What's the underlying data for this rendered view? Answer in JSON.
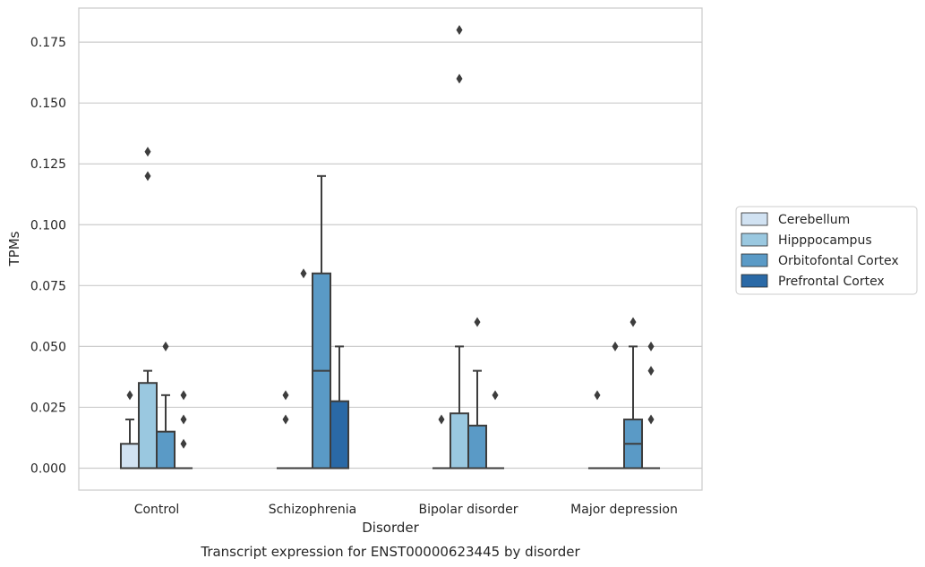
{
  "chart_data": {
    "type": "box",
    "title": "",
    "caption": "Transcript expression for ENST00000623445 by disorder",
    "xlabel": "Disorder",
    "ylabel": "TPMs",
    "ylim": [
      -0.009,
      0.189
    ],
    "yticks": [
      0,
      0.025,
      0.05,
      0.075,
      0.1,
      0.125,
      0.15,
      0.175
    ],
    "ytick_labels": [
      "0.000",
      "0.025",
      "0.050",
      "0.075",
      "0.100",
      "0.125",
      "0.150",
      "0.175"
    ],
    "grid": "horizontal",
    "legend_position": "right",
    "categories": [
      "Control",
      "Schizophrenia",
      "Bipolar disorder",
      "Major depression"
    ],
    "series": [
      {
        "name": "Cerebellum",
        "color": "#d1e2f2",
        "boxes": [
          {
            "min": 0,
            "q1": 0,
            "median": 0,
            "q3": 0.01,
            "max": 0.02,
            "outliers": [
              0.03
            ]
          },
          {
            "min": 0,
            "q1": 0,
            "median": 0,
            "q3": 0,
            "max": 0,
            "outliers": [
              0.03,
              0.02
            ]
          },
          {
            "min": 0,
            "q1": 0,
            "median": 0,
            "q3": 0,
            "max": 0,
            "outliers": [
              0.02
            ]
          },
          {
            "min": 0,
            "q1": 0,
            "median": 0,
            "q3": 0,
            "max": 0,
            "outliers": [
              0.03
            ]
          }
        ]
      },
      {
        "name": "Hipppocampus",
        "color": "#9ac8e0",
        "boxes": [
          {
            "min": 0,
            "q1": 0,
            "median": 0,
            "q3": 0.035,
            "max": 0.04,
            "outliers": [
              0.13,
              0.12
            ]
          },
          {
            "min": 0,
            "q1": 0,
            "median": 0,
            "q3": 0,
            "max": 0,
            "outliers": [
              0.08
            ]
          },
          {
            "min": 0,
            "q1": 0,
            "median": 0,
            "q3": 0.0225,
            "max": 0.05,
            "outliers": [
              0.18,
              0.16
            ]
          },
          {
            "min": 0,
            "q1": 0,
            "median": 0,
            "q3": 0,
            "max": 0,
            "outliers": [
              0.05
            ]
          }
        ]
      },
      {
        "name": "Orbitofontal Cortex",
        "color": "#5a9ac6",
        "boxes": [
          {
            "min": 0,
            "q1": 0,
            "median": 0,
            "q3": 0.015,
            "max": 0.03,
            "outliers": [
              0.05
            ]
          },
          {
            "min": 0,
            "q1": 0,
            "median": 0.04,
            "q3": 0.08,
            "max": 0.12,
            "outliers": []
          },
          {
            "min": 0,
            "q1": 0,
            "median": 0,
            "q3": 0.0175,
            "max": 0.04,
            "outliers": [
              0.06
            ]
          },
          {
            "min": 0,
            "q1": 0,
            "median": 0.01,
            "q3": 0.02,
            "max": 0.05,
            "outliers": [
              0.06
            ]
          }
        ]
      },
      {
        "name": "Prefrontal Cortex",
        "color": "#2a69a6",
        "boxes": [
          {
            "min": 0,
            "q1": 0,
            "median": 0,
            "q3": 0,
            "max": 0,
            "outliers": [
              0.03,
              0.02,
              0.01
            ]
          },
          {
            "min": 0,
            "q1": 0,
            "median": 0,
            "q3": 0.0275,
            "max": 0.05,
            "outliers": []
          },
          {
            "min": 0,
            "q1": 0,
            "median": 0,
            "q3": 0,
            "max": 0,
            "outliers": [
              0.03
            ]
          },
          {
            "min": 0,
            "q1": 0,
            "median": 0,
            "q3": 0,
            "max": 0,
            "outliers": [
              0.05,
              0.04,
              0.02
            ]
          }
        ]
      }
    ]
  }
}
